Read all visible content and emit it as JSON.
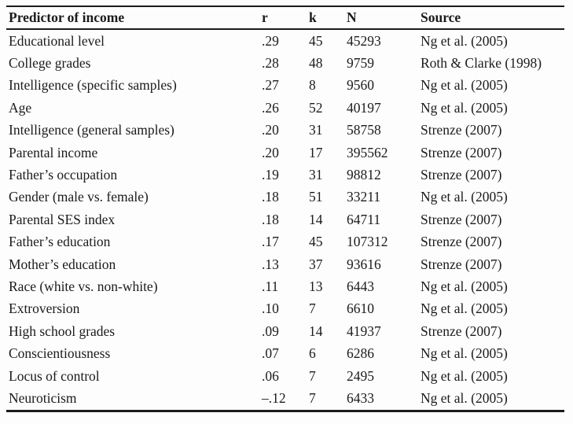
{
  "table": {
    "columns": [
      "Predictor of income",
      "r",
      "k",
      "N",
      "Source"
    ],
    "rows": [
      [
        "Educational level",
        ".29",
        "45",
        "45293",
        "Ng et al. (2005)"
      ],
      [
        "College grades",
        ".28",
        "48",
        "9759",
        "Roth & Clarke (1998)"
      ],
      [
        "Intelligence (specific samples)",
        ".27",
        "8",
        "9560",
        "Ng et al. (2005)"
      ],
      [
        "Age",
        ".26",
        "52",
        "40197",
        "Ng et al. (2005)"
      ],
      [
        "Intelligence (general samples)",
        ".20",
        "31",
        "58758",
        "Strenze (2007)"
      ],
      [
        "Parental income",
        ".20",
        "17",
        "395562",
        "Strenze (2007)"
      ],
      [
        "Father’s occupation",
        ".19",
        "31",
        "98812",
        "Strenze (2007)"
      ],
      [
        "Gender (male vs. female)",
        ".18",
        "51",
        "33211",
        "Ng et al. (2005)"
      ],
      [
        "Parental SES index",
        ".18",
        "14",
        "64711",
        "Strenze (2007)"
      ],
      [
        "Father’s education",
        ".17",
        "45",
        "107312",
        "Strenze (2007)"
      ],
      [
        "Mother’s education",
        ".13",
        "37",
        "93616",
        "Strenze (2007)"
      ],
      [
        "Race (white vs. non-white)",
        ".11",
        "13",
        "6443",
        "Ng et al. (2005)"
      ],
      [
        "Extroversion",
        ".10",
        "7",
        "6610",
        "Ng et al. (2005)"
      ],
      [
        "High school grades",
        ".09",
        "14",
        "41937",
        "Strenze (2007)"
      ],
      [
        "Conscientiousness",
        ".07",
        "6",
        "6286",
        "Ng et al. (2005)"
      ],
      [
        "Locus of control",
        ".06",
        "7",
        "2495",
        "Ng et al. (2005)"
      ],
      [
        "Neuroticism",
        "–.12",
        "7",
        "6433",
        "Ng et al. (2005)"
      ]
    ]
  },
  "colors": {
    "text": "#1b1b1b",
    "rule": "#1b1b1b",
    "background": "#fdfdfd"
  }
}
